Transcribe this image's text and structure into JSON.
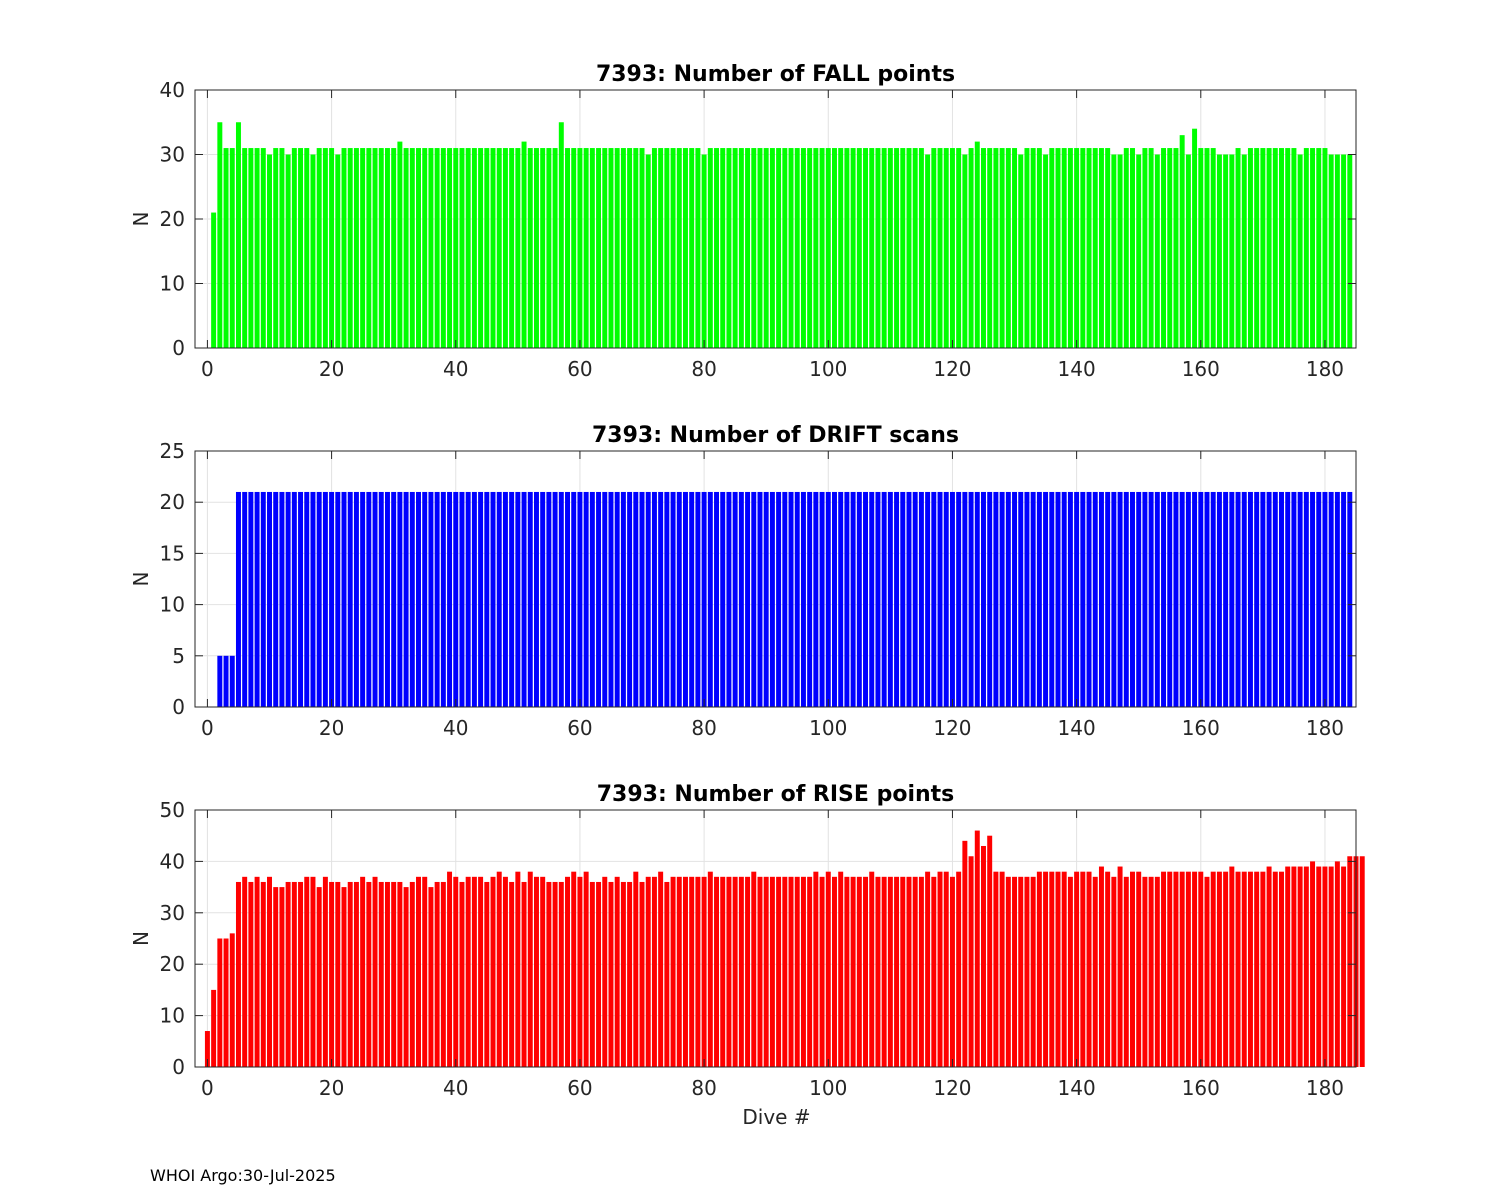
{
  "footer": "WHOI Argo:30-Jul-2025",
  "chart_data": [
    {
      "type": "bar",
      "title": "7393: Number of FALL points",
      "xlabel": "",
      "ylabel": "N",
      "color": "#00ff00",
      "xlim": [
        -2,
        185
      ],
      "ylim": [
        0,
        40
      ],
      "xticks": [
        0,
        20,
        40,
        60,
        80,
        100,
        120,
        140,
        160,
        180
      ],
      "yticks": [
        0,
        10,
        20,
        30,
        40
      ],
      "x_start": 1,
      "values": [
        21,
        35,
        31,
        31,
        35,
        31,
        31,
        31,
        31,
        30,
        31,
        31,
        30,
        31,
        31,
        31,
        30,
        31,
        31,
        31,
        30,
        31,
        31,
        31,
        31,
        31,
        31,
        31,
        31,
        31,
        32,
        31,
        31,
        31,
        31,
        31,
        31,
        31,
        31,
        31,
        31,
        31,
        31,
        31,
        31,
        31,
        31,
        31,
        31,
        31,
        32,
        31,
        31,
        31,
        31,
        31,
        35,
        31,
        31,
        31,
        31,
        31,
        31,
        31,
        31,
        31,
        31,
        31,
        31,
        31,
        30,
        31,
        31,
        31,
        31,
        31,
        31,
        31,
        31,
        30,
        31,
        31,
        31,
        31,
        31,
        31,
        31,
        31,
        31,
        31,
        31,
        31,
        31,
        31,
        31,
        31,
        31,
        31,
        31,
        31,
        31,
        31,
        31,
        31,
        31,
        31,
        31,
        31,
        31,
        31,
        31,
        31,
        31,
        31,
        31,
        30,
        31,
        31,
        31,
        31,
        31,
        30,
        31,
        32,
        31,
        31,
        31,
        31,
        31,
        31,
        30,
        31,
        31,
        31,
        30,
        31,
        31,
        31,
        31,
        31,
        31,
        31,
        31,
        31,
        31,
        30,
        30,
        31,
        31,
        30,
        31,
        31,
        30,
        31,
        31,
        31,
        33,
        30,
        34,
        31,
        31,
        31,
        30,
        30,
        30,
        31,
        30,
        31,
        31,
        31,
        31,
        31,
        31,
        31,
        31,
        30,
        31,
        31,
        31,
        31,
        30,
        30,
        30,
        30
      ]
    },
    {
      "type": "bar",
      "title": "7393: Number of DRIFT scans",
      "xlabel": "",
      "ylabel": "N",
      "color": "#0000ff",
      "xlim": [
        -2,
        185
      ],
      "ylim": [
        0,
        25
      ],
      "xticks": [
        0,
        20,
        40,
        60,
        80,
        100,
        120,
        140,
        160,
        180
      ],
      "yticks": [
        0,
        5,
        10,
        15,
        20,
        25
      ],
      "x_start": 2,
      "values": [
        5,
        5,
        5,
        21,
        21,
        21,
        21,
        21,
        21,
        21,
        21,
        21,
        21,
        21,
        21,
        21,
        21,
        21,
        21,
        21,
        21,
        21,
        21,
        21,
        21,
        21,
        21,
        21,
        21,
        21,
        21,
        21,
        21,
        21,
        21,
        21,
        21,
        21,
        21,
        21,
        21,
        21,
        21,
        21,
        21,
        21,
        21,
        21,
        21,
        21,
        21,
        21,
        21,
        21,
        21,
        21,
        21,
        21,
        21,
        21,
        21,
        21,
        21,
        21,
        21,
        21,
        21,
        21,
        21,
        21,
        21,
        21,
        21,
        21,
        21,
        21,
        21,
        21,
        21,
        21,
        21,
        21,
        21,
        21,
        21,
        21,
        21,
        21,
        21,
        21,
        21,
        21,
        21,
        21,
        21,
        21,
        21,
        21,
        21,
        21,
        21,
        21,
        21,
        21,
        21,
        21,
        21,
        21,
        21,
        21,
        21,
        21,
        21,
        21,
        21,
        21,
        21,
        21,
        21,
        21,
        21,
        21,
        21,
        21,
        21,
        21,
        21,
        21,
        21,
        21,
        21,
        21,
        21,
        21,
        21,
        21,
        21,
        21,
        21,
        21,
        21,
        21,
        21,
        21,
        21,
        21,
        21,
        21,
        21,
        21,
        21,
        21,
        21,
        21,
        21,
        21,
        21,
        21,
        21,
        21,
        21,
        21,
        21,
        21,
        21,
        21,
        21,
        21,
        21,
        21,
        21,
        21,
        21,
        21,
        21,
        21,
        21,
        21,
        21,
        21,
        21,
        21,
        21
      ]
    },
    {
      "type": "bar",
      "title": "7393: Number of RISE points",
      "xlabel": "Dive #",
      "ylabel": "N",
      "color": "#ff0000",
      "xlim": [
        -2,
        185
      ],
      "ylim": [
        0,
        50
      ],
      "xticks": [
        0,
        20,
        40,
        60,
        80,
        100,
        120,
        140,
        160,
        180
      ],
      "yticks": [
        0,
        10,
        20,
        30,
        40,
        50
      ],
      "x_start": 0,
      "values": [
        7,
        15,
        25,
        25,
        26,
        36,
        37,
        36,
        37,
        36,
        37,
        35,
        35,
        36,
        36,
        36,
        37,
        37,
        35,
        37,
        36,
        36,
        35,
        36,
        36,
        37,
        36,
        37,
        36,
        36,
        36,
        36,
        35,
        36,
        37,
        37,
        35,
        36,
        36,
        38,
        37,
        36,
        37,
        37,
        37,
        36,
        37,
        38,
        37,
        36,
        38,
        36,
        38,
        37,
        37,
        36,
        36,
        36,
        37,
        38,
        37,
        38,
        36,
        36,
        37,
        36,
        37,
        36,
        36,
        38,
        36,
        37,
        37,
        38,
        36,
        37,
        37,
        37,
        37,
        37,
        37,
        38,
        37,
        37,
        37,
        37,
        37,
        37,
        38,
        37,
        37,
        37,
        37,
        37,
        37,
        37,
        37,
        37,
        38,
        37,
        38,
        37,
        38,
        37,
        37,
        37,
        37,
        38,
        37,
        37,
        37,
        37,
        37,
        37,
        37,
        37,
        38,
        37,
        38,
        38,
        37,
        38,
        44,
        41,
        46,
        43,
        45,
        38,
        38,
        37,
        37,
        37,
        37,
        37,
        38,
        38,
        38,
        38,
        38,
        37,
        38,
        38,
        38,
        37,
        39,
        38,
        37,
        39,
        37,
        38,
        38,
        37,
        37,
        37,
        38,
        38,
        38,
        38,
        38,
        38,
        38,
        37,
        38,
        38,
        38,
        39,
        38,
        38,
        38,
        38,
        38,
        39,
        38,
        38,
        39,
        39,
        39,
        39,
        40,
        39,
        39,
        39,
        40,
        39,
        41,
        41,
        41
      ]
    }
  ]
}
